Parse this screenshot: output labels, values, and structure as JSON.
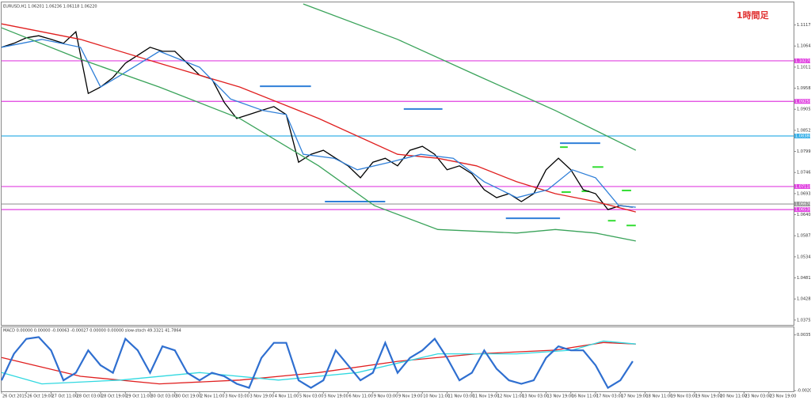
{
  "chart_data": [
    {
      "type": "line",
      "title": "EURUSD,H1 1.06201 1.06236 1.06118 1.06220",
      "annotation": "1時間足",
      "xlim": [
        0,
        512
      ],
      "ylim": [
        1.0365,
        1.117
      ],
      "yticks": [
        1.11172,
        1.10642,
        1.10112,
        1.09582,
        1.09052,
        1.08522,
        1.07992,
        1.07462,
        1.06932,
        1.06402,
        1.05872,
        1.05342,
        1.04812,
        1.04282,
        1.03752
      ],
      "series": [
        {
          "color": "#000000",
          "x": [
            0,
            8,
            16,
            24,
            32,
            40,
            48,
            56,
            64,
            72,
            80,
            88,
            96,
            104,
            112,
            120,
            128,
            136,
            144,
            152,
            160,
            168,
            176,
            184,
            192,
            200,
            208,
            216,
            224,
            232,
            240,
            248,
            256,
            264,
            272,
            280,
            288,
            296,
            304,
            312,
            320,
            328,
            336,
            344,
            352,
            360,
            368,
            376,
            384,
            392,
            400,
            408
          ],
          "values": [
            1.1061,
            1.1071,
            1.1085,
            1.109,
            1.1081,
            1.1071,
            1.11,
            1.0945,
            1.0961,
            1.0985,
            1.1021,
            1.1041,
            1.1061,
            1.1051,
            1.1051,
            1.1021,
            1.0991,
            1.0981,
            1.0922,
            1.0882,
            1.0892,
            1.0902,
            1.0912,
            1.0892,
            1.0772,
            1.0792,
            1.0802,
            1.0782,
            1.0763,
            1.0733,
            1.0772,
            1.0782,
            1.0763,
            1.0802,
            1.0812,
            1.0792,
            1.0753,
            1.0763,
            1.0743,
            1.0703,
            1.0683,
            1.0693,
            1.0673,
            1.0693,
            1.0753,
            1.0782,
            1.0753,
            1.0703,
            1.0693,
            1.0653,
            1.0663,
            1.0659
          ]
        },
        {
          "color": "#e01f1f",
          "x": [
            0,
            51,
            102,
            154,
            205,
            256,
            282,
            307,
            333,
            358,
            384,
            410
          ],
          "values": [
            1.112,
            1.1081,
            1.1021,
            1.0961,
            1.0882,
            1.0792,
            1.0782,
            1.0763,
            1.0723,
            1.0693,
            1.0673,
            1.0647
          ]
        },
        {
          "color": "#2f7fd8",
          "x": [
            0,
            26,
            51,
            64,
            77,
            102,
            128,
            148,
            169,
            184,
            195,
            215,
            230,
            251,
            271,
            292,
            312,
            333,
            353,
            369,
            384,
            399,
            410
          ],
          "values": [
            1.1061,
            1.1081,
            1.1061,
            1.0961,
            1.0991,
            1.1051,
            1.1011,
            1.0931,
            1.0902,
            1.0892,
            1.0792,
            1.0782,
            1.0753,
            1.0772,
            1.0792,
            1.0782,
            1.0723,
            1.0683,
            1.0703,
            1.0753,
            1.0733,
            1.0663,
            1.0659
          ]
        },
        {
          "color": "#3aa35a",
          "x": [
            0,
            51,
            102,
            154,
            205,
            241,
            282,
            333,
            358,
            384,
            410
          ],
          "values": [
            1.111,
            1.1031,
            1.0961,
            1.0882,
            1.0763,
            1.0663,
            1.0603,
            1.0594,
            1.0603,
            1.0594,
            1.0574
          ]
        },
        {
          "color": "#3aa35a",
          "x": [
            195,
            256,
            307,
            358,
            410
          ],
          "values": [
            1.117,
            1.1081,
            1.0991,
            1.0902,
            1.0802
          ]
        }
      ],
      "hlines": [
        {
          "value": 1.1027,
          "label": "1.10270",
          "color": "#e040e0"
        },
        {
          "value": 1.0925,
          "label": "1.09250",
          "color": "#e040e0"
        },
        {
          "value": 1.0838,
          "label": "1.08380",
          "color": "#38b0e8"
        },
        {
          "value": 1.0711,
          "label": "1.07110",
          "color": "#e040e0"
        },
        {
          "value": 1.0667,
          "label": "1.06670",
          "color": "#999999"
        },
        {
          "value": 1.0653,
          "label": "1.06530",
          "color": "#e040e0"
        }
      ],
      "segments": [
        {
          "x": [
            167,
            200
          ],
          "value": 1.0963,
          "color": "#2f7fd8"
        },
        {
          "x": [
            260,
            285
          ],
          "value": 1.0906,
          "color": "#2f7fd8"
        },
        {
          "x": [
            209,
            248
          ],
          "value": 1.0673,
          "color": "#2f7fd8"
        },
        {
          "x": [
            326,
            361
          ],
          "value": 1.0631,
          "color": "#2f7fd8"
        },
        {
          "x": [
            361,
            387
          ],
          "value": 1.082,
          "color": "#2f7fd8"
        },
        {
          "x": [
            361,
            366
          ],
          "value": 1.081,
          "color": "#33dd33"
        },
        {
          "x": [
            382,
            389
          ],
          "value": 1.076,
          "color": "#33dd33"
        },
        {
          "x": [
            375,
            380
          ],
          "value": 1.0699,
          "color": "#33dd33"
        },
        {
          "x": [
            362,
            368
          ],
          "value": 1.0697,
          "color": "#33dd33"
        },
        {
          "x": [
            401,
            407
          ],
          "value": 1.0701,
          "color": "#33dd33"
        },
        {
          "x": [
            392,
            397
          ],
          "value": 1.0625,
          "color": "#33dd33"
        },
        {
          "x": [
            404,
            410
          ],
          "value": 1.0613,
          "color": "#33dd33"
        }
      ]
    },
    {
      "type": "line",
      "title": "MACD 0.00000 0.00000 -0.00063 -0.00027 0.00000 0.00000 slow-stoch 49.3321 41.7864",
      "xlim": [
        0,
        512
      ],
      "ylim": [
        -0.0021,
        0.0037
      ],
      "yticks": [
        {
          "value": 0.00357,
          "label": "0.003570"
        },
        {
          "value": -0.002038,
          "label": "-0.002038"
        }
      ],
      "y2lim": [
        0,
        100
      ],
      "xticks": [
        {
          "value": 0,
          "label": "26 Oct 2015"
        },
        {
          "value": 16,
          "label": "26 Oct 19:00"
        },
        {
          "value": 32,
          "label": "27 Oct 11:00"
        },
        {
          "value": 48,
          "label": "28 Oct 03:00"
        },
        {
          "value": 64,
          "label": "28 Oct 19:00"
        },
        {
          "value": 80,
          "label": "29 Oct 11:00"
        },
        {
          "value": 96,
          "label": "30 Oct 03:00"
        },
        {
          "value": 112,
          "label": "30 Oct 19:00"
        },
        {
          "value": 128,
          "label": "2 Nov 11:00"
        },
        {
          "value": 144,
          "label": "3 Nov 03:00"
        },
        {
          "value": 160,
          "label": "3 Nov 19:00"
        },
        {
          "value": 176,
          "label": "4 Nov 11:00"
        },
        {
          "value": 192,
          "label": "5 Nov 03:00"
        },
        {
          "value": 208,
          "label": "5 Nov 19:00"
        },
        {
          "value": 224,
          "label": "6 Nov 11:00"
        },
        {
          "value": 240,
          "label": "9 Nov 03:00"
        },
        {
          "value": 256,
          "label": "9 Nov 19:00"
        },
        {
          "value": 272,
          "label": "10 Nov 11:00"
        },
        {
          "value": 288,
          "label": "11 Nov 03:00"
        },
        {
          "value": 304,
          "label": "11 Nov 19:00"
        },
        {
          "value": 320,
          "label": "12 Nov 11:00"
        },
        {
          "value": 336,
          "label": "13 Nov 03:00"
        },
        {
          "value": 352,
          "label": "13 Nov 19:00"
        },
        {
          "value": 368,
          "label": "16 Nov 11:00"
        },
        {
          "value": 384,
          "label": "17 Nov 03:00"
        },
        {
          "value": 400,
          "label": "17 Nov 19:00"
        },
        {
          "value": 416,
          "label": "18 Nov 11:00"
        },
        {
          "value": 432,
          "label": "19 Nov 03:00"
        },
        {
          "value": 448,
          "label": "19 Nov 19:00"
        },
        {
          "value": 464,
          "label": "20 Nov 11:00"
        },
        {
          "value": 480,
          "label": "23 Nov 03:00"
        },
        {
          "value": 496,
          "label": "23 Nov 19:00"
        }
      ],
      "series": [
        {
          "color": "#e01f1f",
          "x": [
            0,
            51,
            102,
            154,
            205,
            256,
            307,
            358,
            389,
            410
          ],
          "values": [
            0.00129,
            -0.00059,
            -0.00135,
            -0.00097,
            -0.00022,
            0.00091,
            0.00167,
            0.00204,
            0.0028,
            0.00265
          ]
        },
        {
          "color": "#30d8e0",
          "x": [
            0,
            26,
            77,
            128,
            179,
            230,
            282,
            333,
            369,
            389,
            410
          ],
          "values": [
            -0.00022,
            -0.00135,
            -0.00097,
            -0.00022,
            -0.00097,
            -0.00022,
            0.00167,
            0.00167,
            0.00204,
            0.00295,
            0.00265
          ]
        },
        {
          "color": "#2f6fd0",
          "axis": "y2",
          "x": [
            0,
            8,
            16,
            24,
            32,
            40,
            48,
            56,
            64,
            72,
            80,
            88,
            96,
            104,
            112,
            120,
            128,
            136,
            144,
            152,
            160,
            168,
            176,
            184,
            192,
            200,
            208,
            216,
            224,
            232,
            240,
            248,
            256,
            264,
            272,
            280,
            288,
            296,
            304,
            312,
            320,
            328,
            336,
            344,
            352,
            360,
            368,
            376,
            384,
            392,
            400,
            408
          ],
          "values": [
            19,
            65,
            91,
            94,
            71,
            19,
            32,
            71,
            45,
            32,
            91,
            71,
            32,
            78,
            71,
            32,
            19,
            32,
            26,
            13,
            6,
            58,
            84,
            84,
            19,
            6,
            19,
            71,
            45,
            19,
            32,
            84,
            32,
            58,
            71,
            91,
            58,
            19,
            32,
            71,
            39,
            19,
            13,
            19,
            58,
            78,
            71,
            71,
            45,
            6,
            19,
            52
          ]
        }
      ]
    }
  ]
}
